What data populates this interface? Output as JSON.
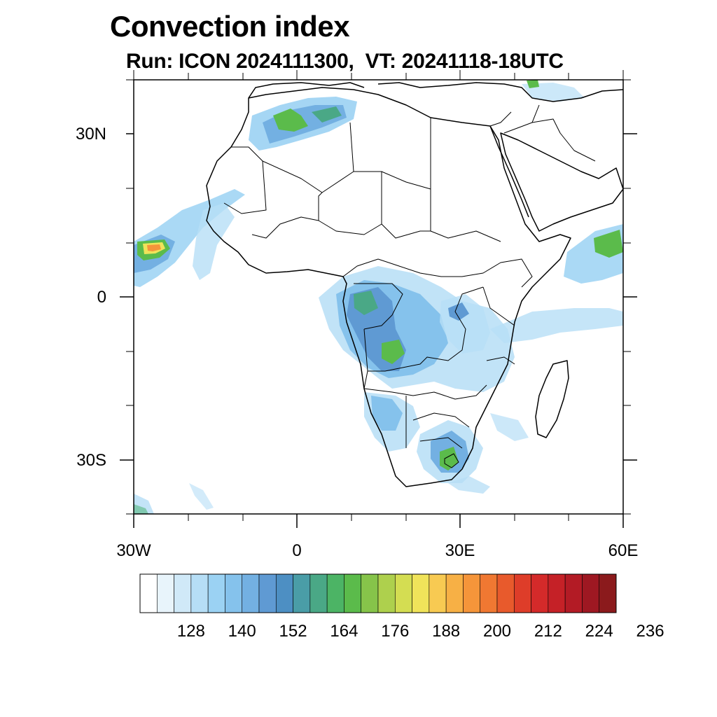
{
  "header": {
    "title": "Convection index",
    "subtitle": "Run: ICON 2024111300,  VT: 20241118-18UTC"
  },
  "axes": {
    "lat_labels": [
      "30N",
      "0",
      "30S"
    ],
    "lon_labels": [
      "30W",
      "0",
      "30E",
      "60E"
    ]
  },
  "colorbar": {
    "colors": [
      "#ffffff",
      "#e8f4fb",
      "#d0e9f8",
      "#b6def6",
      "#9bd2f3",
      "#85c2ec",
      "#73b0e2",
      "#5f9ad3",
      "#4d8fc3",
      "#4a9da7",
      "#4aa886",
      "#4cb465",
      "#5bbb4b",
      "#86c44a",
      "#aed04d",
      "#d4dd52",
      "#f0e35a",
      "#f8ca52",
      "#f7b045",
      "#f5953a",
      "#f07832",
      "#e85a2c",
      "#de3d29",
      "#d42a2a",
      "#c52127",
      "#b31b25",
      "#9e1822",
      "#8b1a1c"
    ],
    "labels": [
      "128",
      "140",
      "152",
      "164",
      "176",
      "188",
      "200",
      "212",
      "224",
      "236"
    ]
  },
  "map": {
    "extent": {
      "lon_min": -30,
      "lon_max": 60,
      "lat_min": -40,
      "lat_max": 40
    }
  }
}
